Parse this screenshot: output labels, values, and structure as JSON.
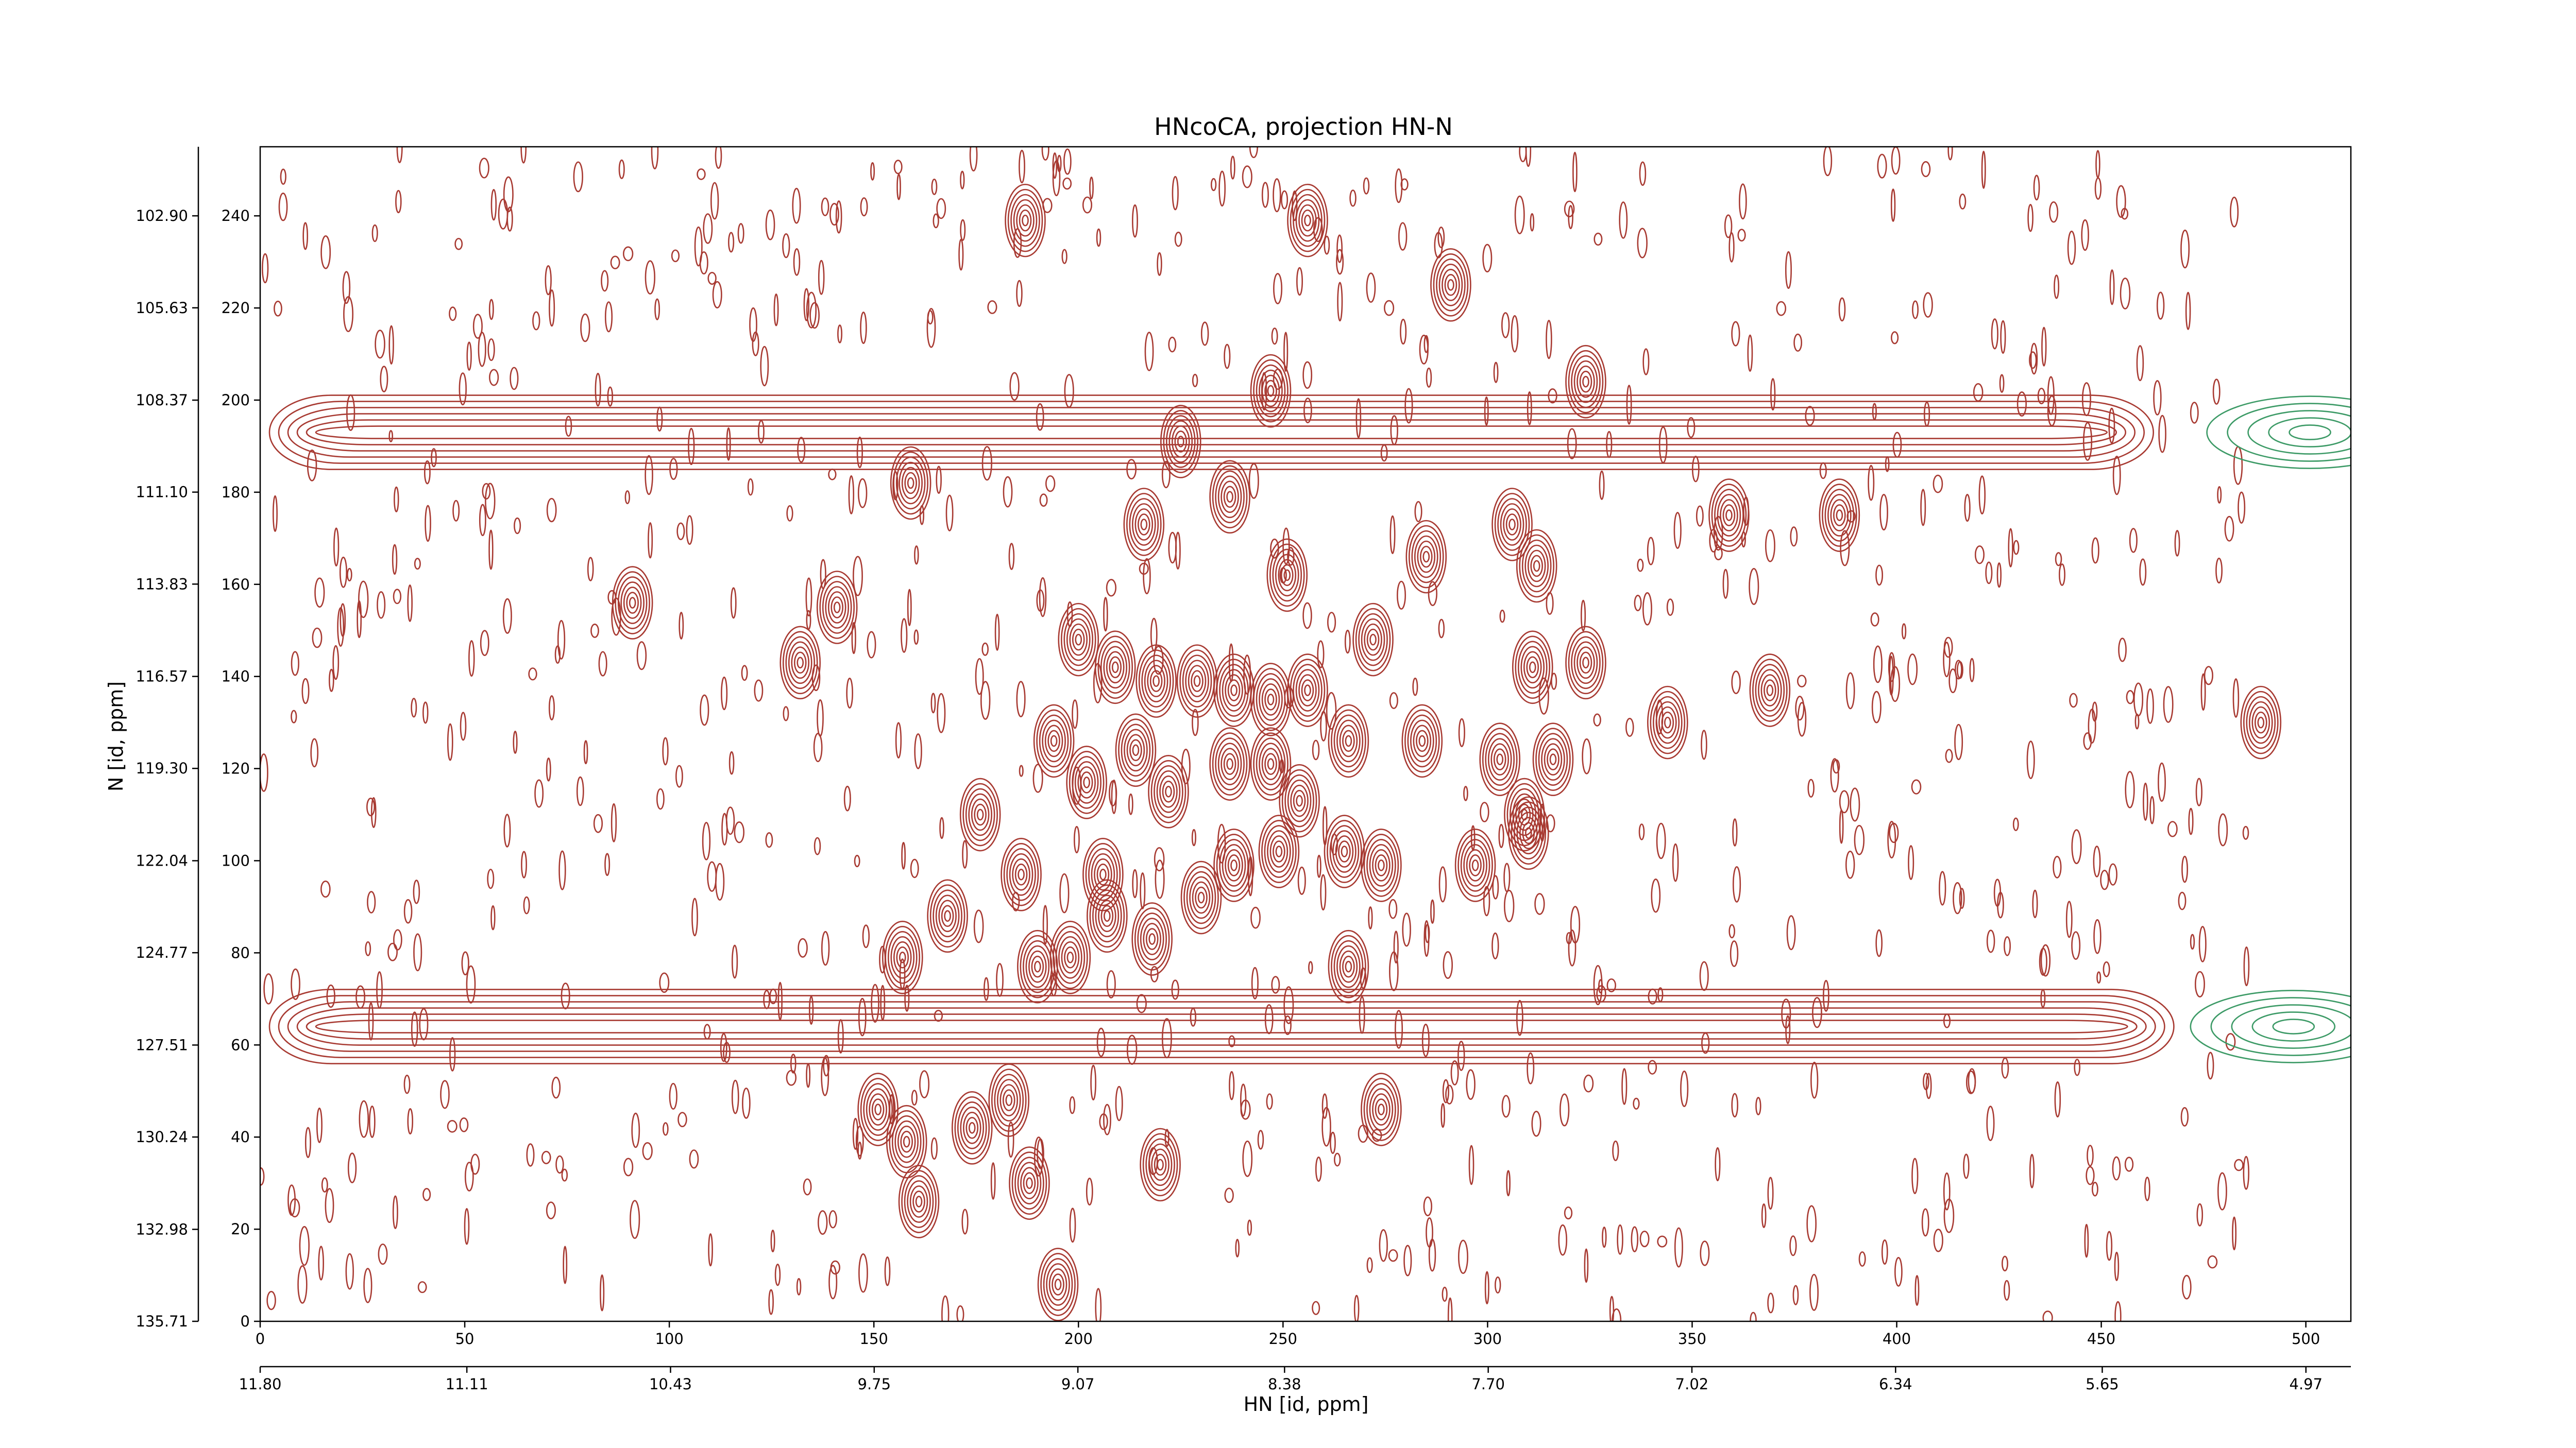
{
  "chart_data": {
    "type": "contour",
    "title": "HNcoCA, projection HN-N",
    "xlabel": "HN [id, ppm]",
    "ylabel": "N [id, ppm]",
    "xlim": [
      0,
      511
    ],
    "ylim": [
      0,
      255
    ],
    "xticks": [
      0,
      50,
      100,
      150,
      200,
      250,
      300,
      350,
      400,
      450,
      500
    ],
    "yticks": [
      0,
      20,
      40,
      60,
      80,
      100,
      120,
      140,
      160,
      180,
      200,
      220,
      240
    ],
    "x2lim": [
      11.8,
      4.82
    ],
    "x2ticks": [
      {
        "value": 11.8,
        "label": "11.80"
      },
      {
        "value": 11.11,
        "label": "11.11"
      },
      {
        "value": 10.43,
        "label": "10.43"
      },
      {
        "value": 9.75,
        "label": "9.75"
      },
      {
        "value": 9.07,
        "label": "9.07"
      },
      {
        "value": 8.38,
        "label": "8.38"
      },
      {
        "value": 7.7,
        "label": "7.70"
      },
      {
        "value": 7.02,
        "label": "7.02"
      },
      {
        "value": 6.34,
        "label": "6.34"
      },
      {
        "value": 5.65,
        "label": "5.65"
      },
      {
        "value": 4.97,
        "label": "4.97"
      }
    ],
    "y2lim": [
      135.71,
      100.85
    ],
    "y2ticks": [
      {
        "value": 135.71,
        "label": "135.71"
      },
      {
        "value": 132.98,
        "label": "132.98"
      },
      {
        "value": 130.24,
        "label": "130.24"
      },
      {
        "value": 127.51,
        "label": "127.51"
      },
      {
        "value": 124.77,
        "label": "124.77"
      },
      {
        "value": 122.04,
        "label": "122.04"
      },
      {
        "value": 119.3,
        "label": "119.30"
      },
      {
        "value": 116.57,
        "label": "116.57"
      },
      {
        "value": 113.83,
        "label": "113.83"
      },
      {
        "value": 111.1,
        "label": "111.10"
      },
      {
        "value": 108.37,
        "label": "108.37"
      },
      {
        "value": 105.63,
        "label": "105.63"
      },
      {
        "value": 102.9,
        "label": "102.90"
      }
    ],
    "color": "#a83a32",
    "negative_color": "#3c9a66",
    "peaks": {
      "x": [
        187,
        256,
        291,
        324,
        91,
        141,
        132,
        216,
        237,
        251,
        285,
        306,
        312,
        359,
        386,
        200,
        209,
        219,
        229,
        238,
        247,
        256,
        272,
        266,
        284,
        311,
        324,
        344,
        369,
        489,
        194,
        202,
        214,
        222,
        237,
        247,
        254,
        297,
        303,
        316,
        309,
        176,
        186,
        206,
        238,
        249,
        265,
        274,
        168,
        157,
        190,
        198,
        207,
        218,
        230,
        266,
        310,
        151,
        158,
        174,
        183,
        188,
        220,
        274,
        161,
        195,
        159,
        225,
        247
      ],
      "y": [
        239,
        239,
        225,
        204,
        156,
        155,
        143,
        173,
        179,
        162,
        166,
        173,
        164,
        175,
        175,
        148,
        142,
        139,
        139,
        137,
        135,
        137,
        148,
        126,
        126,
        142,
        143,
        130,
        137,
        130,
        126,
        117,
        124,
        115,
        121,
        121,
        113,
        99,
        122,
        122,
        110,
        110,
        97,
        97,
        99,
        102,
        102,
        99,
        88,
        79,
        77,
        79,
        88,
        83,
        92,
        77,
        106,
        46,
        39,
        42,
        48,
        30,
        34,
        46,
        26,
        8,
        182,
        191,
        202
      ]
    },
    "ridges": {
      "y": [
        193,
        64
      ],
      "x_start": [
        0,
        0
      ],
      "x_end": [
        465,
        470
      ]
    },
    "negative_peaks": {
      "x": [
        501,
        497
      ],
      "y": [
        193,
        64
      ]
    }
  }
}
